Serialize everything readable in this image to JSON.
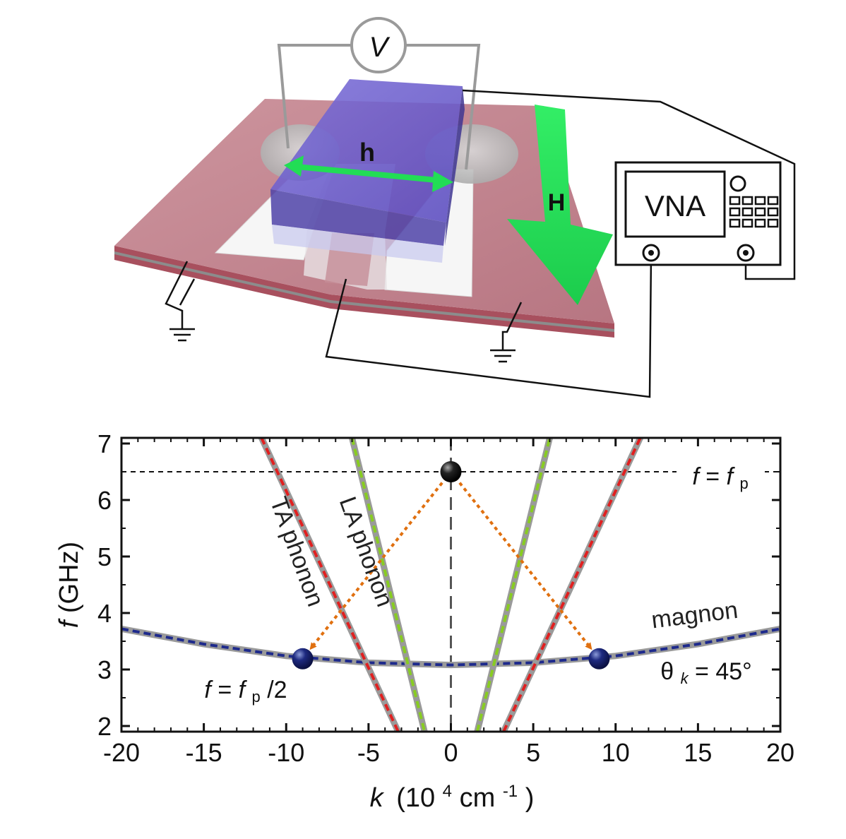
{
  "diagram": {
    "voltmeter_label": "V",
    "rf_field_label": "h",
    "bias_field_label": "H",
    "analyzer_label": "VNA",
    "colors": {
      "substrate": "#b9727d",
      "substrate_edge": "#a8505e",
      "stripe": "#8c8c8c",
      "electrode": "#f4f4f4",
      "magnet_block": "#6e5fd0",
      "arrow_green": "#22dd55"
    }
  },
  "chart_data": {
    "type": "line",
    "xlabel_var": "k",
    "xlabel_unit_pre": "(10",
    "xlabel_exp1": "4",
    "xlabel_unit_mid": " cm",
    "xlabel_exp2": "-1",
    "xlabel_unit_post": ")",
    "ylabel_var": "f",
    "ylabel_unit": " (GHz)",
    "xlim": [
      -20,
      20
    ],
    "ylim": [
      1.9,
      7.1
    ],
    "xticks": [
      -20,
      -15,
      -10,
      -5,
      0,
      5,
      10,
      15,
      20
    ],
    "xtick_labels": [
      "-20",
      "-15",
      "-10",
      "-5",
      "0",
      "5",
      "10",
      "15",
      "20"
    ],
    "yticks": [
      2,
      3,
      4,
      5,
      6,
      7
    ],
    "ytick_labels": [
      "2",
      "3",
      "4",
      "5",
      "6",
      "7"
    ],
    "pump_frequency": 6.5,
    "series": [
      {
        "name": "magnon",
        "color": "#1e2a8c",
        "points": [
          [
            -20,
            3.72
          ],
          [
            -15,
            3.45
          ],
          [
            -10,
            3.24
          ],
          [
            -5,
            3.12
          ],
          [
            0,
            3.08
          ],
          [
            5,
            3.12
          ],
          [
            10,
            3.24
          ],
          [
            15,
            3.45
          ],
          [
            20,
            3.72
          ]
        ]
      },
      {
        "name": "TA phonon",
        "color": "#e02020",
        "points": [
          [
            -11.5,
            7.1
          ],
          [
            -3.2,
            1.9
          ]
        ]
      },
      {
        "name": "TA phonon",
        "color": "#e02020",
        "points": [
          [
            3.2,
            1.9
          ],
          [
            11.5,
            7.1
          ]
        ]
      },
      {
        "name": "LA phonon",
        "color": "#88cc22",
        "points": [
          [
            -6.0,
            7.1
          ],
          [
            -1.6,
            1.9
          ]
        ]
      },
      {
        "name": "LA phonon",
        "color": "#88cc22",
        "points": [
          [
            1.6,
            1.9
          ],
          [
            6.0,
            7.1
          ]
        ]
      }
    ],
    "markers": [
      {
        "label": "pump",
        "x": 0,
        "y": 6.5,
        "color": "#111111"
      },
      {
        "label": "left",
        "x": -9.0,
        "y": 3.19,
        "color": "#1a237e"
      },
      {
        "label": "right",
        "x": 9.0,
        "y": 3.19,
        "color": "#1a237e"
      }
    ],
    "arrows": [
      {
        "from": [
          0,
          6.5
        ],
        "to": [
          -9.0,
          3.19
        ],
        "color": "#e07010"
      },
      {
        "from": [
          0,
          6.5
        ],
        "to": [
          9.0,
          3.19
        ],
        "color": "#e07010"
      }
    ],
    "annotations": {
      "pump_line_var": "f",
      "pump_line_eq": " = ",
      "pump_line_rhs_var": "f",
      "pump_line_rhs_sub": "p",
      "half_var": "f",
      "half_eq": " = ",
      "half_rhs_var": "f",
      "half_rhs_sub": "p",
      "half_rhs_tail": "/2",
      "magnon_label": "magnon",
      "angle_symbol": "θ",
      "angle_sub": "k",
      "angle_value": " = 45°",
      "ta_label": "TA phonon",
      "la_label": "LA phonon"
    },
    "grid": false,
    "legend": "none"
  }
}
